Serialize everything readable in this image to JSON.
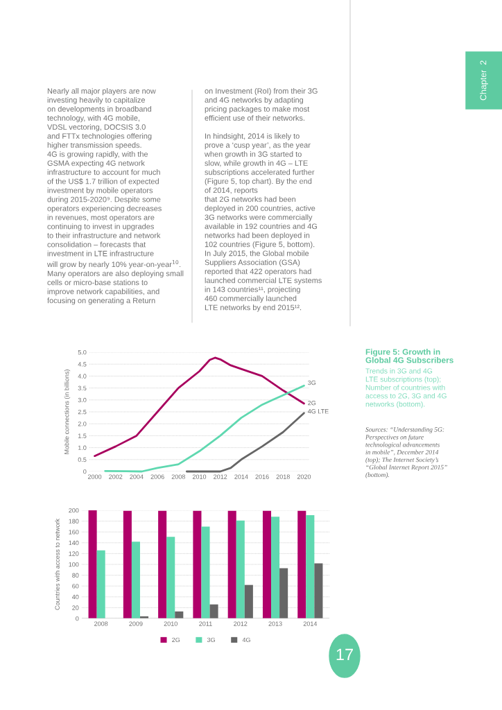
{
  "chart_data": [
    {
      "type": "line",
      "ylabel": "Mobile connections (in billions)",
      "annotations": [
        "Figure 5: Growth in\nGlobal 4G Subscribers",
        "Trends in 3G and 4G\nLTE subscriptions (top);\nNumber of countries with\naccess to 2G, 3G and 4G\nnetworks (bottom).",
        "Nearly all major players are now\ninvesting heavily to capitalize\non developments in broadband\ntechnology, with 4G mobile,\nVDSL vectoring, DOCSIS 3.0\nand FTTx technologies offering\nhigher transmission speeds.\n4G is growing rapidly, with the\nGSMA expecting 4G network\ninfrastructure to account for much\nof the US$ 1.7 trillion of expected\ninvestment by mobile operators\nduring 2015-2020⁹. Despite some\noperators experiencing decreases\nin revenues, most operators are\ncontinuing to invest in upgrades\nto their infrastructure and network\nconsolidation – forecasts that\ninvestment in LTE infrastructure\nwill grow by nearly 10% year-on-year$^{10}$.\nMany operators are also deploying small\ncells or micro-base stations to\nimprove network capabilities, and\nfocusing on generating a Return",
        "on Investment (RoI) from their 3G\nand 4G networks by adapting\npricing packages to make most\nefficient use of their networks.\n\nIn hindsight, 2014 is likely to\nprove a ‘cusp year’, as the year\nwhen growth in 3G started to\nslow, while growth in 4G – LTE\nsubscriptions accelerated further\n(Figure 5, top chart). By the end\nof 2014, reports\nthat 2G networks had been\ndeployed in 200 countries, active\n3G networks were commercially\navailable in 192 countries and 4G\nnetworks had been deployed in\n102 countries (Figure 5, bottom).\nIn July 2015, the Global mobile\nSuppliers Association (GSA)\nreported that 422 operators had\nlaunched commercial LTE systems\nin 143 countries¹¹, projecting\n460 commercially launched\nLTE networks by end 2015¹².",
        "Sources: “Understanding 5G:\nPerspectives on future\ntechnological advancements\nin mobile”, December 2014\n(top); The Internet Society’s\n“Global Internet Report 2015”\n(bottom).",
        "Chapter  2",
        "17"
      ],
      "xlim": [
        1999.5,
        2020.5
      ],
      "xticks": [
        2000,
        2002,
        2004,
        2006,
        2008,
        2010,
        2012,
        2014,
        2016,
        2018,
        2020
      ],
      "ylim": [
        0,
        5
      ],
      "yticks": [
        0,
        {
          "value": 0.5,
          "label": "0.5"
        },
        {
          "value": 1,
          "label": "1.0"
        },
        {
          "value": 1.5,
          "label": "1.5"
        },
        {
          "value": 2,
          "label": "2.0"
        },
        {
          "value": 2.5,
          "label": "2.5"
        },
        {
          "value": 3,
          "label": "3.0"
        },
        {
          "value": 3.5,
          "label": "3.5"
        },
        {
          "value": 4,
          "label": "4.0"
        },
        {
          "value": 4.5,
          "label": "4.5"
        },
        {
          "value": 5,
          "label": "5.0"
        }
      ],
      "grid": "y",
      "legend": false,
      "series": [
        {
          "name": "2G",
          "color": "#a8005e",
          "x": [
            2000,
            2002,
            2004,
            2006,
            2008,
            2010,
            2011,
            2011.5,
            2012,
            2013,
            2014,
            2016,
            2018,
            2020
          ],
          "values": [
            0.65,
            1.05,
            1.5,
            2.5,
            3.5,
            4.2,
            4.68,
            4.77,
            4.7,
            4.45,
            4.3,
            4.0,
            3.4,
            2.85
          ]
        },
        {
          "name": "3G",
          "color": "#5fd8b0",
          "x": [
            2001,
            2003,
            2004.5,
            2006,
            2008,
            2010,
            2012,
            2014,
            2016,
            2017,
            2018,
            2020
          ],
          "values": [
            0.02,
            0.01,
            0,
            0.15,
            0.3,
            0.85,
            1.5,
            2.25,
            2.8,
            3.0,
            3.2,
            3.6
          ]
        },
        {
          "name": "4G LTE",
          "color": "#666666",
          "x": [
            2008.8,
            2012,
            2013,
            2014,
            2016,
            2018,
            2020
          ],
          "values": [
            0,
            0,
            0.15,
            0.5,
            1.05,
            1.65,
            2.45
          ]
        }
      ]
    },
    {
      "type": "bar",
      "ylabel": "Countries with access to network",
      "categories": [
        "2008",
        "2009",
        "2010",
        "2011",
        "2012",
        "2013",
        "2014"
      ],
      "ylim": [
        0,
        200
      ],
      "yticks": [
        0,
        20,
        40,
        60,
        80,
        100,
        120,
        140,
        160,
        180,
        200
      ],
      "grid": "y",
      "legend": "bottom",
      "series": [
        {
          "name": "2G",
          "color": "#b0006a",
          "values": [
            200,
            199,
            199,
            199,
            199,
            199,
            199
          ]
        },
        {
          "name": "3G",
          "color": "#5fd8b0",
          "values": [
            126,
            142,
            151,
            170,
            181,
            188,
            191
          ]
        },
        {
          "name": "4G",
          "color": "#666666",
          "values": [
            0,
            4,
            13,
            26,
            62,
            93,
            102
          ]
        }
      ]
    }
  ]
}
